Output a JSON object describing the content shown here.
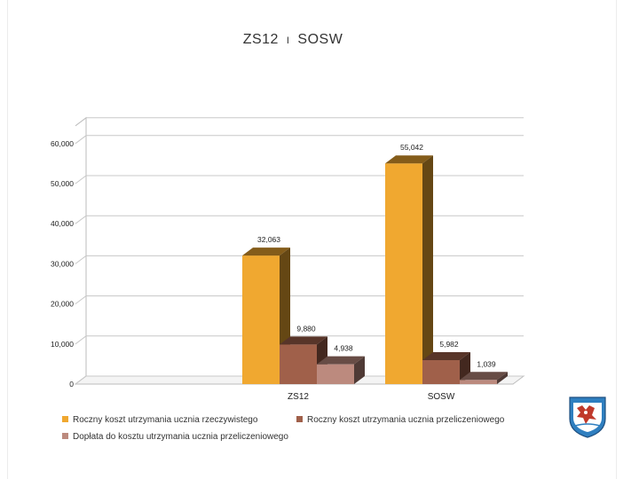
{
  "slide": {
    "title_main": "ZS12",
    "title_sep": "I",
    "title_sub": "SOSW"
  },
  "chart_data": {
    "type": "bar",
    "categories": [
      "ZS12",
      "SOSW"
    ],
    "series": [
      {
        "name": "Roczny koszt utrzymania ucznia rzeczywistego",
        "values": [
          32063,
          55042
        ],
        "labels": [
          "32,063",
          "55,042"
        ],
        "color": "#F0A830"
      },
      {
        "name": "Roczny koszt utrzymania ucznia przeliczeniowego",
        "values": [
          9880,
          5982
        ],
        "labels": [
          "9,880",
          "5,982"
        ],
        "color": "#A0604A"
      },
      {
        "name": "Dopłata do kosztu utrzymania ucznia przeliczeniowego",
        "values": [
          4938,
          1039
        ],
        "labels": [
          "4,938",
          "1,039"
        ],
        "color": "#BC8A7E"
      }
    ],
    "yticks": [
      "0",
      "10,000",
      "20,000",
      "30,000",
      "40,000",
      "50,000",
      "60,000"
    ],
    "ylim": [
      0,
      60000
    ],
    "grid": true,
    "legend_position": "bottom"
  }
}
